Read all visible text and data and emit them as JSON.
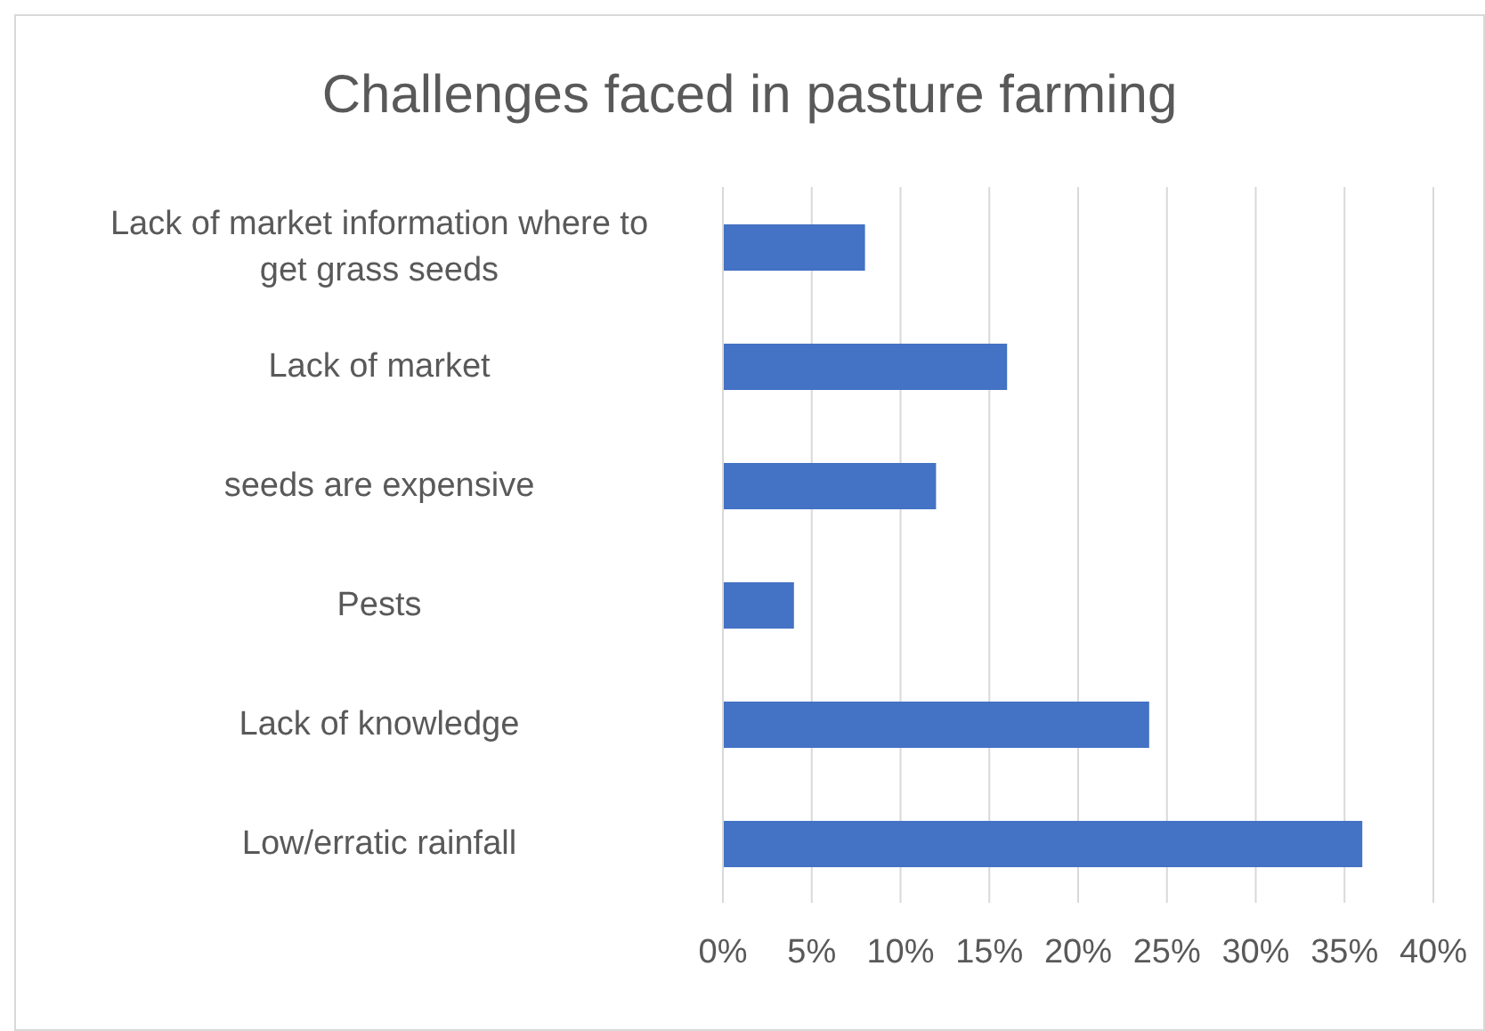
{
  "chart_data": {
    "type": "bar",
    "orientation": "horizontal",
    "title": "Challenges faced in pasture farming",
    "categories": [
      "Lack of market information where to get grass seeds",
      "Lack of market",
      "seeds are expensive",
      "Pests",
      "Lack of knowledge",
      "Low/erratic rainfall"
    ],
    "values": [
      8,
      16,
      12,
      4,
      24,
      36
    ],
    "color": "#4472c4",
    "xlim": [
      0,
      40
    ],
    "xticks": [
      {
        "value": 0,
        "label": "0%"
      },
      {
        "value": 5,
        "label": "5%"
      },
      {
        "value": 10,
        "label": "10%"
      },
      {
        "value": 15,
        "label": "15%"
      },
      {
        "value": 20,
        "label": "20%"
      },
      {
        "value": 25,
        "label": "25%"
      },
      {
        "value": 30,
        "label": "30%"
      },
      {
        "value": 35,
        "label": "35%"
      },
      {
        "value": 40,
        "label": "40%"
      }
    ],
    "grid": "x",
    "legend": false
  }
}
